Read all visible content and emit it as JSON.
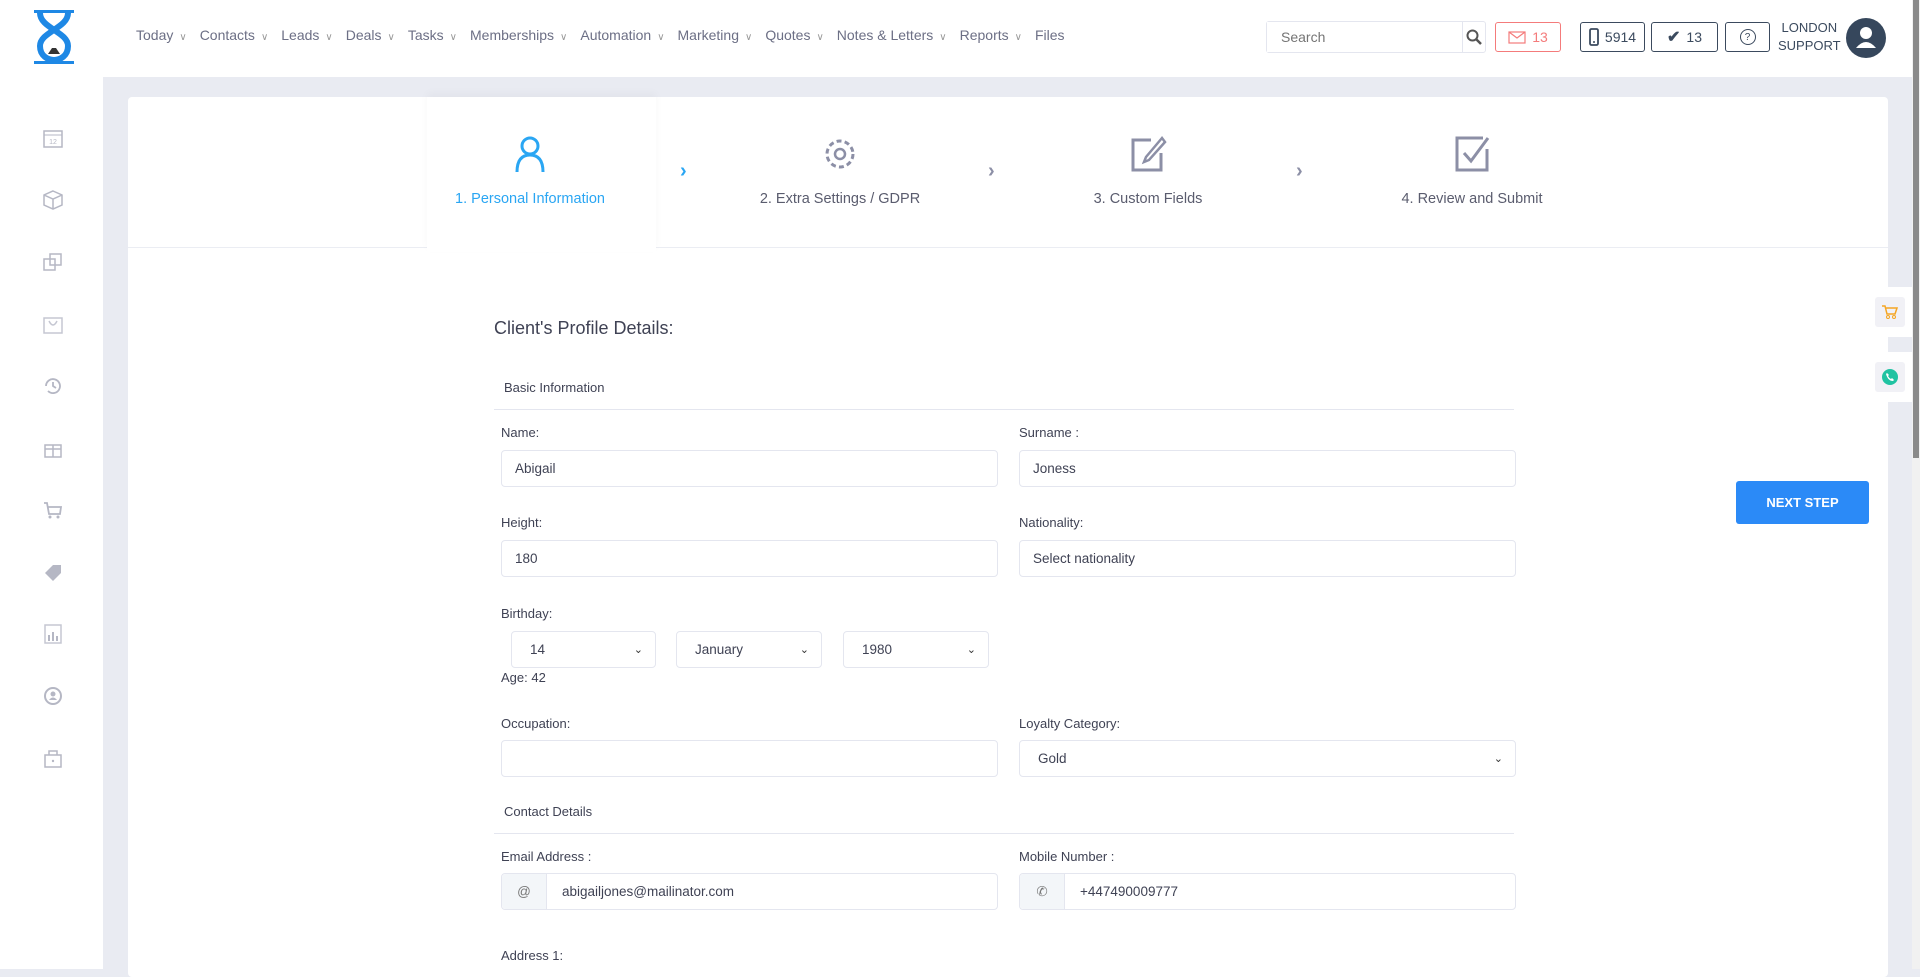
{
  "header": {
    "nav": [
      "Today",
      "Contacts",
      "Leads",
      "Deals",
      "Tasks",
      "Memberships",
      "Automation",
      "Marketing",
      "Quotes",
      "Notes & Letters",
      "Reports",
      "Files"
    ],
    "search_placeholder": "Search",
    "mail_count": "13",
    "phone_count": "5914",
    "tasks_count": "13",
    "user_line1": "LONDON",
    "user_line2": "SUPPORT"
  },
  "sidebar": {
    "icons": [
      "calendar-icon",
      "box-icon",
      "copy-icon",
      "basket-icon",
      "history-icon",
      "gift-icon",
      "cart-icon",
      "tag-icon",
      "report-icon",
      "user-circle-icon",
      "lock-icon"
    ]
  },
  "steps": [
    "1. Personal Information",
    "2. Extra Settings / GDPR",
    "3. Custom Fields",
    "4. Review and Submit"
  ],
  "form": {
    "title": "Client's Profile Details:",
    "basic_section": "Basic Information",
    "name_label": "Name:",
    "name": "Abigail",
    "surname_label": "Surname :",
    "surname": "Joness",
    "height_label": "Height:",
    "height": "180",
    "nationality_label": "Nationality:",
    "nationality_placeholder": "Select nationality",
    "birthday_label": "Birthday:",
    "day": "14",
    "month": "January",
    "year": "1980",
    "age": "Age: 42",
    "occupation_label": "Occupation:",
    "occupation": "",
    "loyalty_label": "Loyalty Category:",
    "loyalty": "Gold",
    "contact_section": "Contact Details",
    "email_label": "Email Address :",
    "email": "abigailjones@mailinator.com",
    "mobile_label": "Mobile Number :",
    "mobile": "+447490009777",
    "address1_label": "Address 1:"
  },
  "next_step": "NEXT STEP",
  "colors": {
    "accent": "#2aa6f3",
    "button": "#2b8af7",
    "mail": "#f47b7b"
  }
}
